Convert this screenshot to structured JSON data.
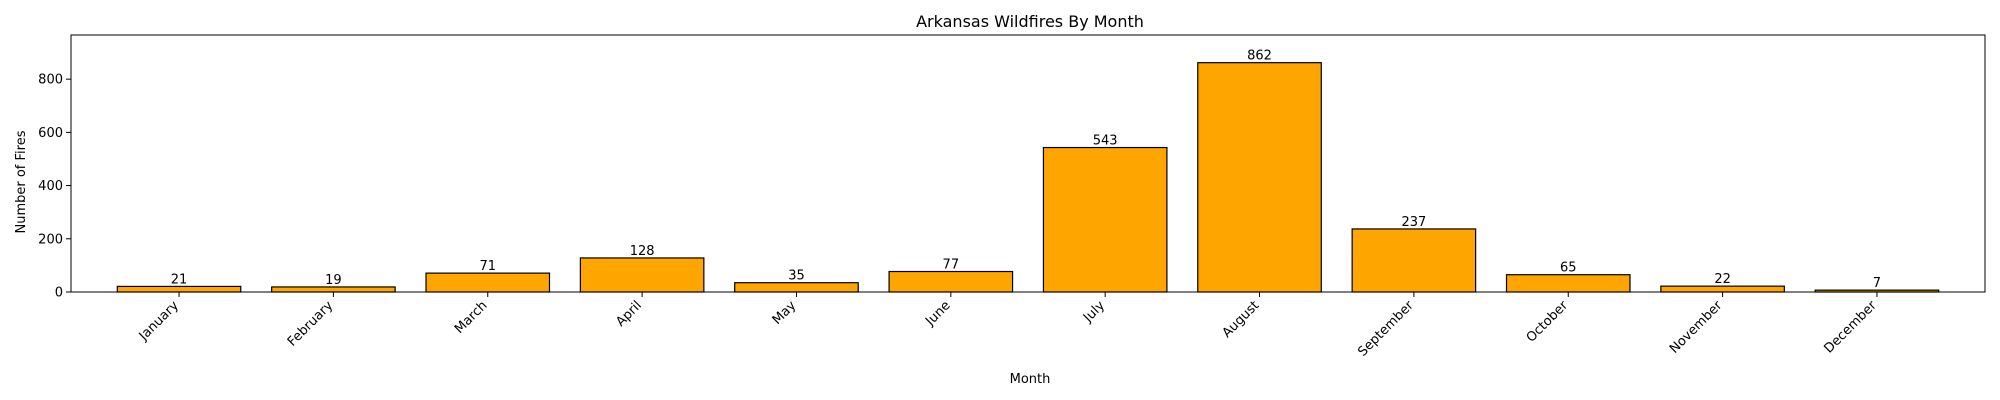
{
  "chart_data": {
    "type": "bar",
    "title": "Arkansas Wildfires By Month",
    "xlabel": "Month",
    "ylabel": "Number of Fires",
    "categories": [
      "January",
      "February",
      "March",
      "April",
      "May",
      "June",
      "July",
      "August",
      "September",
      "October",
      "November",
      "December"
    ],
    "values": [
      21,
      19,
      71,
      128,
      35,
      77,
      543,
      862,
      237,
      65,
      22,
      7
    ],
    "data_labels": [
      "21",
      "19",
      "71",
      "128",
      "35",
      "77",
      "543",
      "862",
      "237",
      "65",
      "22",
      "7"
    ],
    "ylim": [
      0,
      966
    ],
    "yticks": [
      0,
      200,
      400,
      600,
      800
    ],
    "ytick_labels": [
      "0",
      "200",
      "400",
      "600",
      "800"
    ],
    "grid": false,
    "legend": "none",
    "colors": {
      "bar_fill": "#ffa500",
      "bar_edge": "#000000",
      "axis": "#000000"
    }
  }
}
